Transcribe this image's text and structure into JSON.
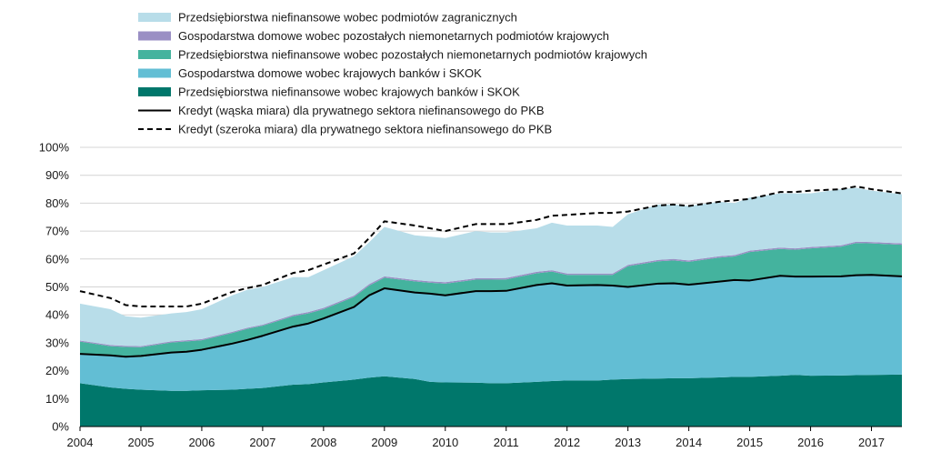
{
  "chart_data": {
    "type": "area",
    "title": "",
    "xlabel": "",
    "ylabel": "",
    "x_range": [
      2004.0,
      2017.5
    ],
    "ylim": [
      0,
      100
    ],
    "y_ticks": [
      0,
      10,
      20,
      30,
      40,
      50,
      60,
      70,
      80,
      90,
      100
    ],
    "y_tick_labels": [
      "0%",
      "10%",
      "20%",
      "30%",
      "40%",
      "50%",
      "60%",
      "70%",
      "80%",
      "90%",
      "100%"
    ],
    "x_ticks": [
      2004,
      2005,
      2006,
      2007,
      2008,
      2009,
      2010,
      2011,
      2012,
      2013,
      2014,
      2015,
      2016,
      2017
    ],
    "x_tick_labels": [
      "2004",
      "2005",
      "2006",
      "2007",
      "2008",
      "2009",
      "2010",
      "2011",
      "2012",
      "2013",
      "2014",
      "2015",
      "2016",
      "2017"
    ],
    "grid": true,
    "legend_position": "top",
    "x": [
      2004.0,
      2004.5,
      2004.75,
      2005.0,
      2005.5,
      2005.75,
      2006.0,
      2006.5,
      2006.75,
      2007.0,
      2007.5,
      2007.75,
      2008.0,
      2008.5,
      2008.75,
      2009.0,
      2009.5,
      2009.75,
      2010.0,
      2010.5,
      2010.75,
      2011.0,
      2011.5,
      2011.75,
      2012.0,
      2012.5,
      2012.75,
      2013.0,
      2013.5,
      2013.75,
      2014.0,
      2014.5,
      2014.75,
      2015.0,
      2015.5,
      2015.75,
      2016.0,
      2016.5,
      2016.75,
      2017.0,
      2017.5
    ],
    "stacked_series": [
      {
        "name": "Przedsiębiorstwa niefinansowe wobec krajowych banków i SKOK",
        "color": "#00776b",
        "values": [
          15.5,
          14.0,
          13.5,
          13.2,
          12.8,
          12.8,
          13.0,
          13.2,
          13.5,
          13.8,
          15.0,
          15.2,
          15.8,
          16.8,
          17.5,
          18.0,
          17.0,
          16.0,
          15.8,
          15.7,
          15.5,
          15.5,
          16.0,
          16.3,
          16.5,
          16.5,
          16.8,
          17.0,
          17.2,
          17.3,
          17.3,
          17.6,
          17.8,
          17.8,
          18.2,
          18.5,
          18.2,
          18.3,
          18.4,
          18.5,
          18.6
        ]
      },
      {
        "name": "Gospodarstwa domowe wobec krajowych banków i SKOK",
        "color": "#62bed4",
        "values": [
          10.5,
          11.3,
          11.5,
          11.6,
          13.8,
          14.2,
          14.5,
          16.5,
          17.5,
          18.7,
          20.8,
          21.7,
          22.9,
          26.0,
          29.5,
          31.5,
          31.0,
          31.6,
          31.2,
          32.8,
          33.0,
          33.1,
          34.7,
          35.0,
          34.0,
          34.2,
          33.7,
          33.0,
          34.0,
          34.0,
          33.5,
          34.3,
          34.7,
          34.5,
          35.8,
          35.2,
          35.5,
          35.5,
          35.8,
          35.8,
          35.2
        ]
      },
      {
        "name": "Przedsiębiorstwa niefinansowe wobec pozostałych niemonetarnych podmiotów krajowych",
        "color": "#44b39e",
        "values": [
          4.4,
          3.5,
          3.5,
          3.6,
          3.5,
          3.5,
          3.4,
          3.8,
          4.0,
          3.6,
          3.7,
          3.6,
          3.3,
          3.6,
          3.5,
          3.8,
          4.0,
          3.9,
          4.2,
          4.1,
          4.1,
          4.1,
          4.2,
          4.2,
          3.8,
          3.6,
          3.8,
          7.4,
          8.0,
          8.2,
          8.2,
          8.6,
          8.4,
          10.2,
          9.6,
          9.6,
          10.1,
          10.6,
          11.5,
          11.3,
          11.3
        ]
      },
      {
        "name": "Gospodarstwa domowe wobec pozostałych niemonetarnych podmiotów krajowych",
        "color": "#9a8fc4",
        "values": [
          0.4,
          0.4,
          0.4,
          0.4,
          0.4,
          0.4,
          0.4,
          0.4,
          0.4,
          0.4,
          0.5,
          0.5,
          0.5,
          0.5,
          0.5,
          0.5,
          0.5,
          0.5,
          0.5,
          0.5,
          0.5,
          0.5,
          0.5,
          0.5,
          0.5,
          0.5,
          0.5,
          0.5,
          0.5,
          0.5,
          0.5,
          0.5,
          0.5,
          0.5,
          0.5,
          0.5,
          0.5,
          0.5,
          0.5,
          0.5,
          0.5
        ]
      },
      {
        "name": "Przedsiębiorstwa niefinansowe wobec podmiotów zagranicznych",
        "color": "#b8dde9",
        "values": [
          13.2,
          12.8,
          10.6,
          10.2,
          10.0,
          10.1,
          10.7,
          13.1,
          13.6,
          13.5,
          13.5,
          12.5,
          13.5,
          14.1,
          15.0,
          17.7,
          16.0,
          16.0,
          15.8,
          16.9,
          16.4,
          16.3,
          15.6,
          17.0,
          17.2,
          17.2,
          16.7,
          18.1,
          19.8,
          19.5,
          19.5,
          19.5,
          18.6,
          19.0,
          19.4,
          19.7,
          19.2,
          20.1,
          19.3,
          18.4,
          17.6
        ]
      }
    ],
    "line_series": [
      {
        "name": "Kredyt (wąska miara) dla prywatnego sektora niefinansowego do PKB",
        "color": "#000000",
        "style": "solid",
        "values": [
          26.0,
          25.5,
          25.0,
          25.3,
          26.5,
          26.8,
          27.5,
          29.7,
          31.0,
          32.5,
          35.8,
          36.9,
          38.7,
          42.8,
          47.0,
          49.5,
          48.0,
          47.6,
          47.0,
          48.5,
          48.5,
          48.6,
          50.7,
          51.3,
          50.5,
          50.7,
          50.5,
          50.0,
          51.2,
          51.3,
          50.8,
          51.9,
          52.5,
          52.3,
          54.0,
          53.7,
          53.7,
          53.8,
          54.2,
          54.3,
          53.8
        ]
      },
      {
        "name": "Kredyt (szeroka miara) dla prywatnego sektora niefinansowego do PKB",
        "color": "#000000",
        "style": "dashed",
        "values": [
          48.5,
          46.0,
          43.5,
          43.0,
          43.0,
          43.0,
          44.0,
          48.2,
          49.6,
          50.7,
          55.0,
          56.0,
          58.0,
          62.0,
          67.5,
          73.5,
          72.0,
          71.0,
          70.0,
          72.5,
          72.5,
          72.5,
          74.0,
          75.5,
          75.8,
          76.5,
          76.5,
          77.0,
          79.2,
          79.5,
          79.0,
          80.5,
          81.0,
          81.5,
          84.0,
          84.0,
          84.5,
          85.0,
          86.0,
          85.0,
          83.5
        ]
      }
    ]
  },
  "legend": {
    "items": [
      {
        "label": "Przedsiębiorstwa niefinansowe wobec podmiotów zagranicznych",
        "kind": "area",
        "color": "#b8dde9"
      },
      {
        "label": "Gospodarstwa domowe wobec pozostałych niemonetarnych podmiotów krajowych",
        "kind": "area",
        "color": "#9a8fc4"
      },
      {
        "label": "Przedsiębiorstwa niefinansowe wobec pozostałych niemonetarnych podmiotów krajowych",
        "kind": "area",
        "color": "#44b39e"
      },
      {
        "label": "Gospodarstwa domowe wobec krajowych banków i SKOK",
        "kind": "area",
        "color": "#62bed4"
      },
      {
        "label": "Przedsiębiorstwa niefinansowe wobec krajowych banków i SKOK",
        "kind": "area",
        "color": "#00776b"
      },
      {
        "label": "Kredyt (wąska miara) dla prywatnego sektora niefinansowego do PKB",
        "kind": "line-solid",
        "color": "#000000"
      },
      {
        "label": "Kredyt (szeroka miara) dla prywatnego sektora niefinansowego do PKB",
        "kind": "line-dashed",
        "color": "#000000"
      }
    ]
  }
}
